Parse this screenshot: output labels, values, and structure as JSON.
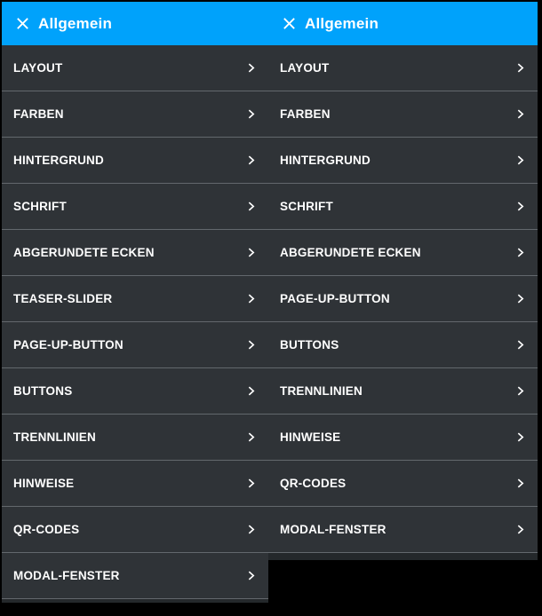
{
  "accent_color": "#00a2fb",
  "row_background": "#2f3337",
  "separator_color": "#63686d",
  "panels": [
    {
      "title": "Allgemein",
      "close_icon": "close-icon",
      "items": [
        "LAYOUT",
        "FARBEN",
        "HINTERGRUND",
        "SCHRIFT",
        "ABGERUNDETE ECKEN",
        "TEASER-SLIDER",
        "PAGE-UP-BUTTON",
        "BUTTONS",
        "TRENNLINIEN",
        "HINWEISE",
        "QR-CODES",
        "MODAL-FENSTER"
      ]
    },
    {
      "title": "Allgemein",
      "close_icon": "close-icon",
      "items": [
        "LAYOUT",
        "FARBEN",
        "HINTERGRUND",
        "SCHRIFT",
        "ABGERUNDETE ECKEN",
        "PAGE-UP-BUTTON",
        "BUTTONS",
        "TRENNLINIEN",
        "HINWEISE",
        "QR-CODES",
        "MODAL-FENSTER"
      ]
    }
  ]
}
